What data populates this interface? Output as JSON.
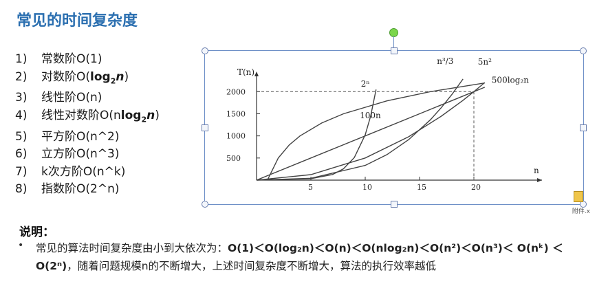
{
  "slide": {
    "title": "常见的时间复杂度",
    "list": [
      {
        "num": "1)",
        "text": "常数阶O(1)"
      },
      {
        "num": "2)",
        "text": "对数阶O(",
        "bold": "log",
        "sub": "2",
        "bold_tail": "n",
        "tail": ")"
      },
      {
        "num": "3)",
        "text": "线性阶O(n)"
      },
      {
        "num": "4)",
        "text": "线性对数阶O(n",
        "bold": "log",
        "sub": "2",
        "bold_tail": "n",
        "tail": ")"
      },
      {
        "num": "5)",
        "text": "平方阶O(n^2)"
      },
      {
        "num": "6)",
        "text": "立方阶O(n^3)"
      },
      {
        "num": "7)",
        "text": "k次方阶O(n^k)"
      },
      {
        "num": "8)",
        "text": "指数阶O(2^n)"
      }
    ],
    "explain_title": "说明：",
    "bullet": "•",
    "explain_line1_prefix": "常见的算法时间复杂度由小到大依次为：",
    "explain_formula": "O(1)＜O(log₂n)＜O(n)＜O(nlog₂n)＜O(n²)＜O(n³)＜ O(nᵏ) ＜O(2ⁿ)",
    "explain_rest": "，随着问题规模n的不断增大，上述时间复杂度不断增大，算法的执行效率越低",
    "note_text": "附件.x"
  },
  "chart_data": {
    "type": "line",
    "ylabel": "T(n)",
    "xlabel": "n",
    "x_ticks": [
      "5",
      "10",
      "15",
      "20"
    ],
    "y_ticks": [
      "500",
      "1000",
      "1500",
      "2000"
    ],
    "xlim": [
      0,
      25
    ],
    "ylim": [
      0,
      2300
    ],
    "series": [
      {
        "name": "2ⁿ",
        "points": [
          [
            0,
            1
          ],
          [
            5,
            32
          ],
          [
            7,
            128
          ],
          [
            8,
            256
          ],
          [
            9,
            512
          ],
          [
            10,
            1024
          ],
          [
            10.5,
            1448
          ],
          [
            11,
            2048
          ]
        ]
      },
      {
        "name": "n³/3",
        "points": [
          [
            0,
            0
          ],
          [
            5,
            42
          ],
          [
            10,
            333
          ],
          [
            12,
            576
          ],
          [
            14,
            915
          ],
          [
            16,
            1365
          ],
          [
            17,
            1638
          ],
          [
            18,
            1944
          ],
          [
            19,
            2286
          ]
        ]
      },
      {
        "name": "5n²",
        "points": [
          [
            0,
            0
          ],
          [
            5,
            125
          ],
          [
            10,
            500
          ],
          [
            14,
            980
          ],
          [
            17,
            1445
          ],
          [
            19,
            1805
          ],
          [
            20,
            2000
          ],
          [
            21,
            2205
          ]
        ]
      },
      {
        "name": "100n",
        "points": [
          [
            0,
            0
          ],
          [
            5,
            500
          ],
          [
            10,
            1000
          ],
          [
            15,
            1500
          ],
          [
            20,
            2000
          ],
          [
            21,
            2100
          ]
        ]
      },
      {
        "name": "500log₂n",
        "points": [
          [
            1,
            0
          ],
          [
            2,
            500
          ],
          [
            3,
            792
          ],
          [
            4,
            1000
          ],
          [
            6,
            1292
          ],
          [
            8,
            1500
          ],
          [
            12,
            1792
          ],
          [
            16,
            2000
          ],
          [
            21,
            2196
          ]
        ]
      }
    ],
    "guides": {
      "y": 2000,
      "x": 20
    }
  }
}
